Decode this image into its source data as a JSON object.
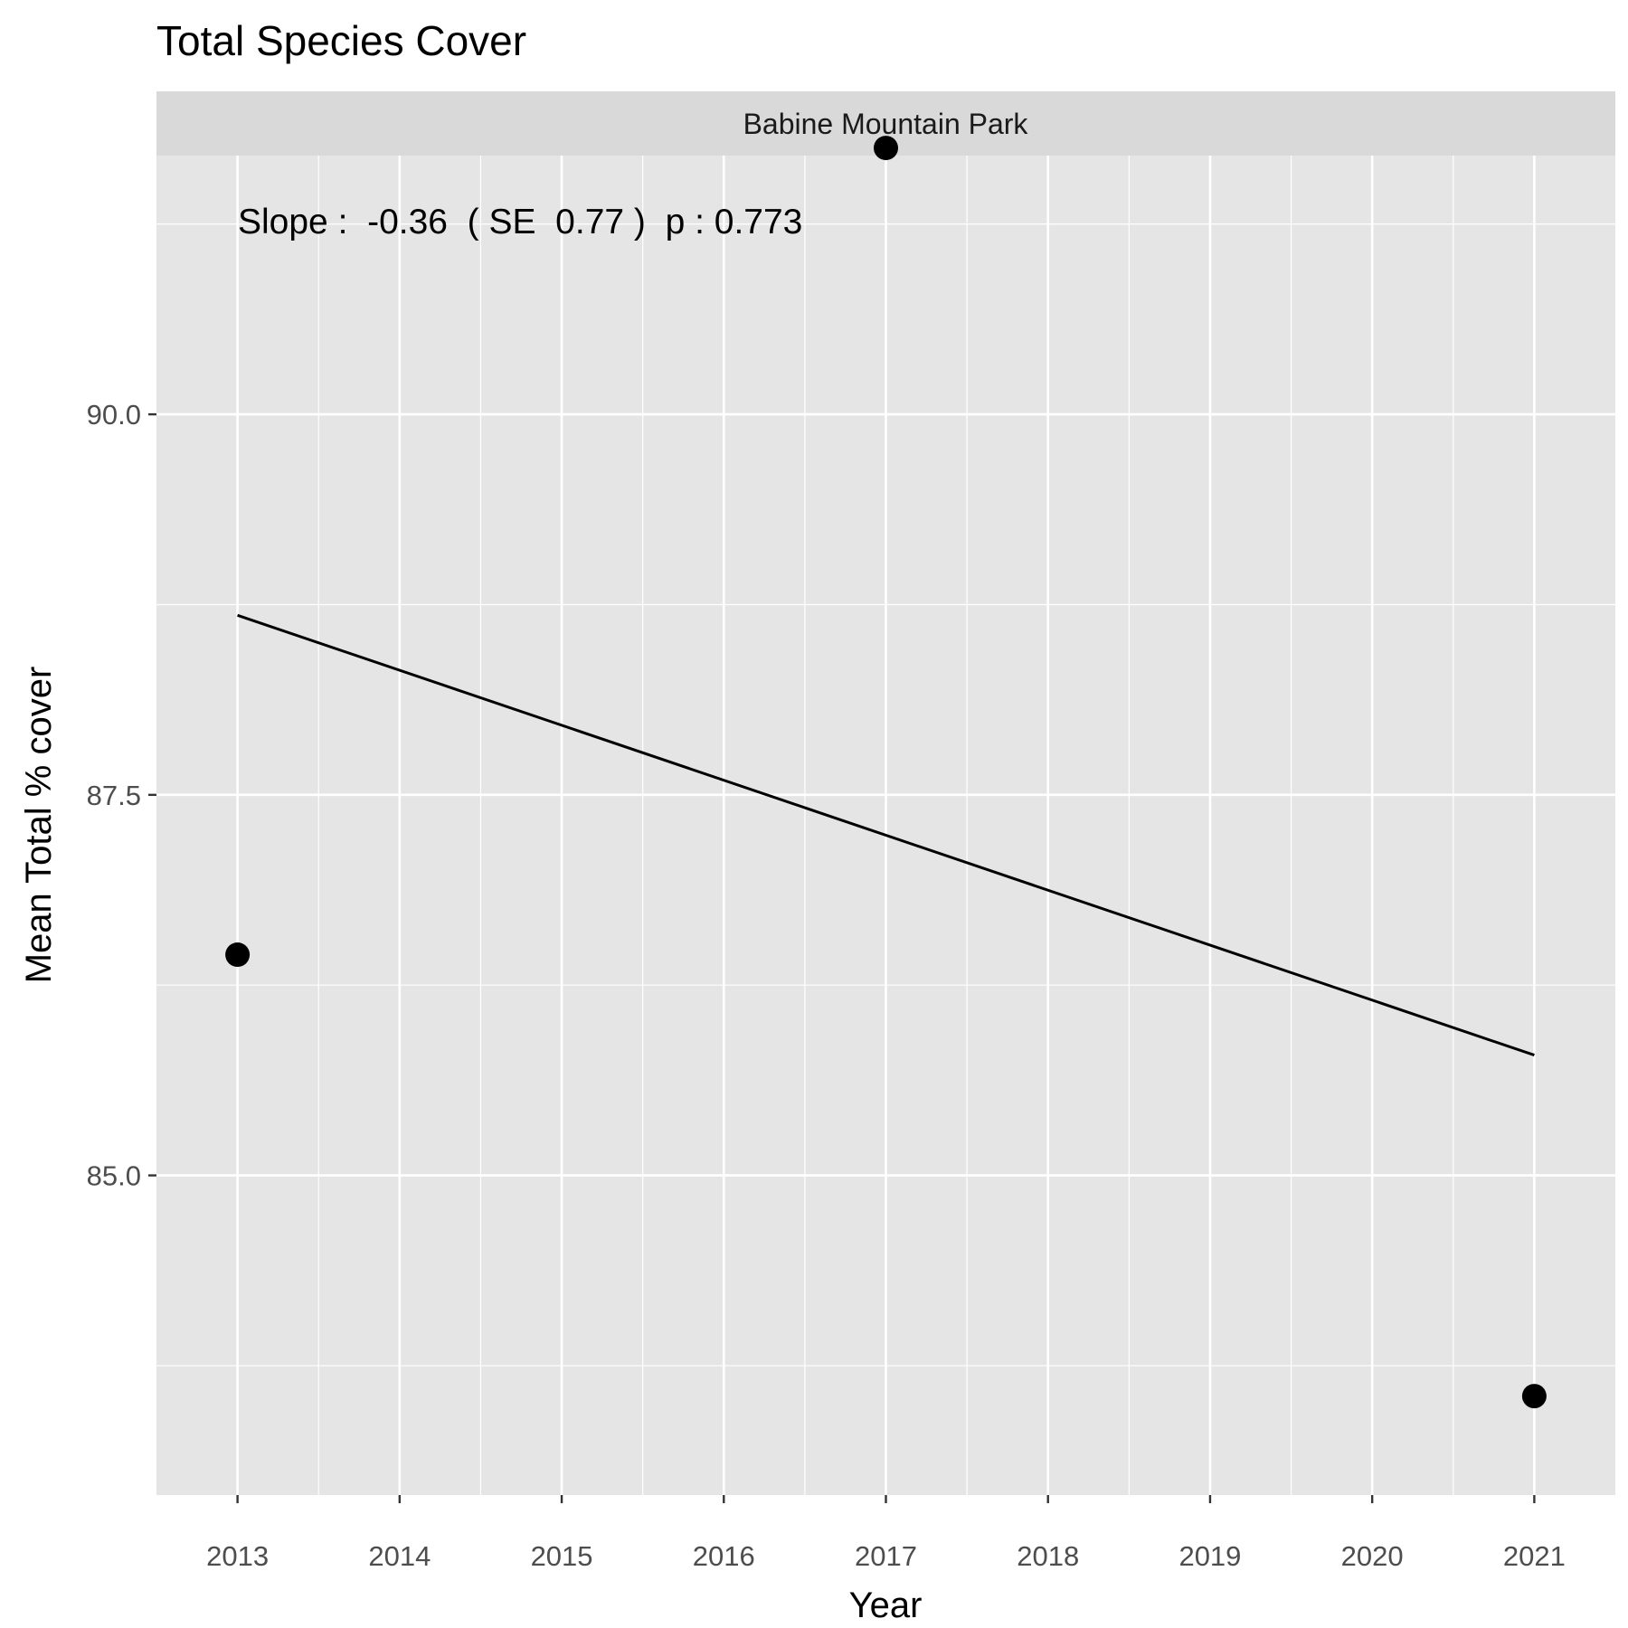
{
  "chart_data": {
    "type": "scatter",
    "title": "Total Species Cover",
    "facet": "Babine Mountain Park",
    "xlabel": "Year",
    "ylabel": "Mean Total % cover",
    "x_ticks": [
      2013,
      2014,
      2015,
      2016,
      2017,
      2018,
      2019,
      2020,
      2021
    ],
    "y_ticks": [
      "85.0",
      "87.5",
      "90.0"
    ],
    "xlim": [
      2012.5,
      2021.5
    ],
    "ylim": [
      82.9,
      91.7
    ],
    "grid": true,
    "series": [
      {
        "type": "scatter",
        "x": [
          2013,
          2017,
          2021
        ],
        "y": [
          86.45,
          91.75,
          83.55
        ]
      },
      {
        "type": "line",
        "x": [
          2013,
          2021
        ],
        "y": [
          88.68,
          85.79
        ]
      }
    ],
    "annotation": "Slope :  -0.36  ( SE  0.77 )  p : 0.773",
    "colors": {
      "panel_bg": "#e5e5e5",
      "strip_bg": "#d9d9d9",
      "grid": "#ffffff",
      "marks": "#000000"
    }
  }
}
